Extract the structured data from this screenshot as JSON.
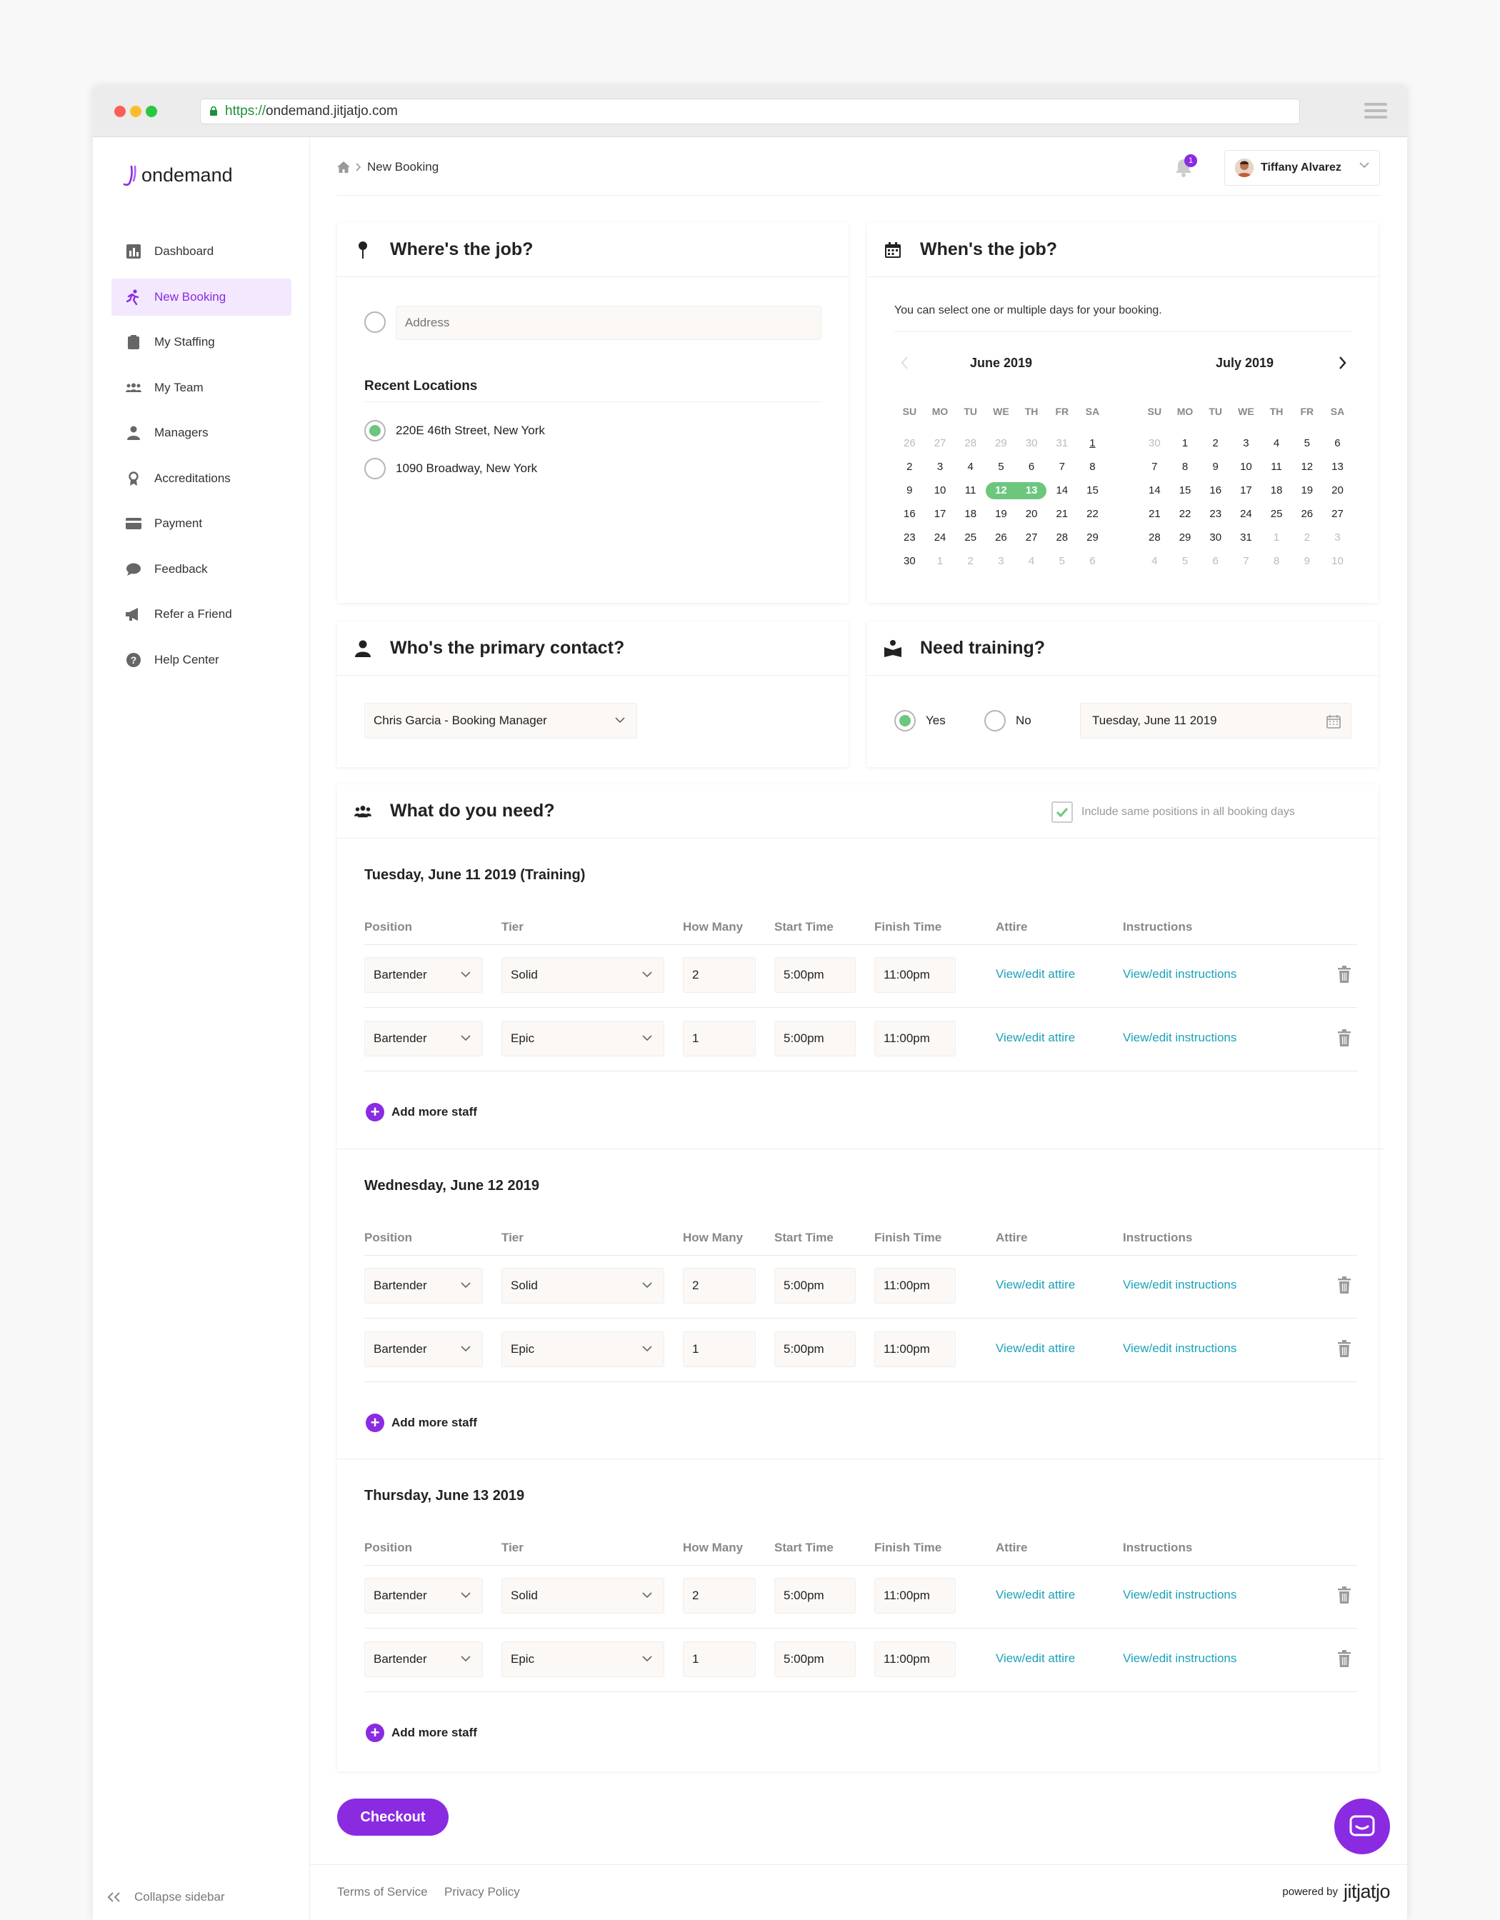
{
  "browser": {
    "url_scheme": "https://",
    "url_host": "ondemand.jitjatjo.com"
  },
  "brand": {
    "name": "ondemand",
    "accent": "#8a2be2",
    "success": "#6cc67d",
    "link": "#1aa2b8"
  },
  "sidebar": {
    "items": [
      {
        "label": "Dashboard",
        "icon": "bar-chart-icon"
      },
      {
        "label": "New Booking",
        "icon": "runner-icon"
      },
      {
        "label": "My Staffing",
        "icon": "clipboard-icon"
      },
      {
        "label": "My Team",
        "icon": "team-icon"
      },
      {
        "label": "Managers",
        "icon": "manager-icon"
      },
      {
        "label": "Accreditations",
        "icon": "award-icon"
      },
      {
        "label": "Payment",
        "icon": "card-icon"
      },
      {
        "label": "Feedback",
        "icon": "chat-bubble-icon"
      },
      {
        "label": "Refer a Friend",
        "icon": "megaphone-icon"
      },
      {
        "label": "Help Center",
        "icon": "help-icon"
      }
    ],
    "collapse_label": "Collapse sidebar"
  },
  "header": {
    "breadcrumb": "New Booking",
    "notification_count": "1",
    "user_name": "Tiffany Alvarez"
  },
  "where": {
    "title": "Where's the job?",
    "address_placeholder": "Address",
    "recent_title": "Recent Locations",
    "locations": [
      {
        "label": "220E 46th Street, New York",
        "selected": true
      },
      {
        "label": "1090 Broadway, New York",
        "selected": false
      }
    ]
  },
  "when": {
    "title": "When's the job?",
    "hint": "You can select one or multiple days for your booking.",
    "days_of_week": [
      "SU",
      "MO",
      "TU",
      "WE",
      "TH",
      "FR",
      "SA"
    ],
    "months": [
      {
        "name": "June 2019",
        "weeks": [
          [
            "26",
            "27",
            "28",
            "29",
            "30",
            "31",
            "1"
          ],
          [
            "2",
            "3",
            "4",
            "5",
            "6",
            "7",
            "8"
          ],
          [
            "9",
            "10",
            "11",
            "12",
            "13",
            "14",
            "15"
          ],
          [
            "16",
            "17",
            "18",
            "19",
            "20",
            "21",
            "22"
          ],
          [
            "23",
            "24",
            "25",
            "26",
            "27",
            "28",
            "29"
          ],
          [
            "30",
            "1",
            "2",
            "3",
            "4",
            "5",
            "6"
          ]
        ]
      },
      {
        "name": "July 2019",
        "weeks": [
          [
            "30",
            "1",
            "2",
            "3",
            "4",
            "5",
            "6"
          ],
          [
            "7",
            "8",
            "9",
            "10",
            "11",
            "12",
            "13"
          ],
          [
            "14",
            "15",
            "16",
            "17",
            "18",
            "19",
            "20"
          ],
          [
            "21",
            "22",
            "23",
            "24",
            "25",
            "26",
            "27"
          ],
          [
            "28",
            "29",
            "30",
            "31",
            "1",
            "2",
            "3"
          ],
          [
            "4",
            "5",
            "6",
            "7",
            "8",
            "9",
            "10"
          ]
        ]
      }
    ],
    "selected_days": [
      "12",
      "13"
    ]
  },
  "contact": {
    "title": "Who's the primary contact?",
    "value": "Chris Garcia - Booking Manager"
  },
  "training": {
    "title": "Need training?",
    "yes_label": "Yes",
    "no_label": "No",
    "date": "Tuesday, June 11 2019"
  },
  "needs": {
    "title": "What do you need?",
    "include_label": "Include same positions in all booking days",
    "columns": [
      "Position",
      "Tier",
      "How Many",
      "Start Time",
      "Finish Time",
      "Attire",
      "Instructions"
    ],
    "attire_link": "View/edit attire",
    "instructions_link": "View/edit instructions",
    "add_label": "Add more staff",
    "days": [
      {
        "title": "Tuesday, June 11 2019 (Training)",
        "rows": [
          {
            "position": "Bartender",
            "tier": "Solid",
            "count": "2",
            "start": "5:00pm",
            "finish": "11:00pm"
          },
          {
            "position": "Bartender",
            "tier": "Epic",
            "count": "1",
            "start": "5:00pm",
            "finish": "11:00pm"
          }
        ]
      },
      {
        "title": "Wednesday, June 12 2019",
        "rows": [
          {
            "position": "Bartender",
            "tier": "Solid",
            "count": "2",
            "start": "5:00pm",
            "finish": "11:00pm"
          },
          {
            "position": "Bartender",
            "tier": "Epic",
            "count": "1",
            "start": "5:00pm",
            "finish": "11:00pm"
          }
        ]
      },
      {
        "title": "Thursday, June 13 2019",
        "rows": [
          {
            "position": "Bartender",
            "tier": "Solid",
            "count": "2",
            "start": "5:00pm",
            "finish": "11:00pm"
          },
          {
            "position": "Bartender",
            "tier": "Epic",
            "count": "1",
            "start": "5:00pm",
            "finish": "11:00pm"
          }
        ]
      }
    ]
  },
  "checkout_label": "Checkout",
  "footer": {
    "terms": "Terms of Service",
    "privacy": "Privacy Policy",
    "powered_by": "powered by",
    "powered_brand": "jitjatjo"
  }
}
